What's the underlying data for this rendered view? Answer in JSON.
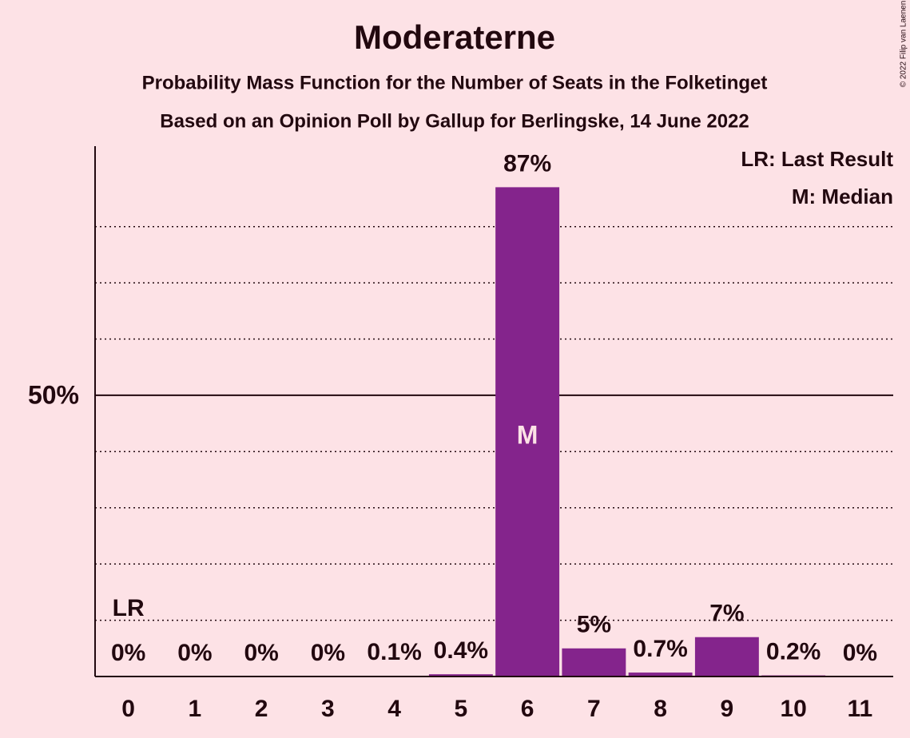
{
  "chart_data": {
    "type": "bar",
    "title": "Moderaterne",
    "subtitle": "Probability Mass Function for the Number of Seats in the Folketinget",
    "subtitle2": "Based on an Opinion Poll by Gallup for Berlingske, 14 June 2022",
    "categories": [
      "0",
      "1",
      "2",
      "3",
      "4",
      "5",
      "6",
      "7",
      "8",
      "9",
      "10",
      "11"
    ],
    "values": [
      0,
      0,
      0,
      0,
      0.1,
      0.4,
      87,
      5,
      0.7,
      7,
      0.2,
      0
    ],
    "value_labels": [
      "0%",
      "0%",
      "0%",
      "0%",
      "0.1%",
      "0.4%",
      "87%",
      "5%",
      "0.7%",
      "7%",
      "0.2%",
      "0%"
    ],
    "color": "#84248c",
    "ylim": [
      0,
      94.3
    ],
    "yticks": [
      {
        "value": 50,
        "label": "50%"
      }
    ],
    "grid_lines": [
      10,
      20,
      30,
      40,
      60,
      70,
      80
    ],
    "annotations": [
      {
        "category": 0,
        "text": "LR"
      },
      {
        "category": 6,
        "text": "M"
      }
    ],
    "legend": [
      "LR: Last Result",
      "M: Median"
    ],
    "legend_position": "top-right",
    "copyright": "© 2022 Filip van Laenen"
  }
}
